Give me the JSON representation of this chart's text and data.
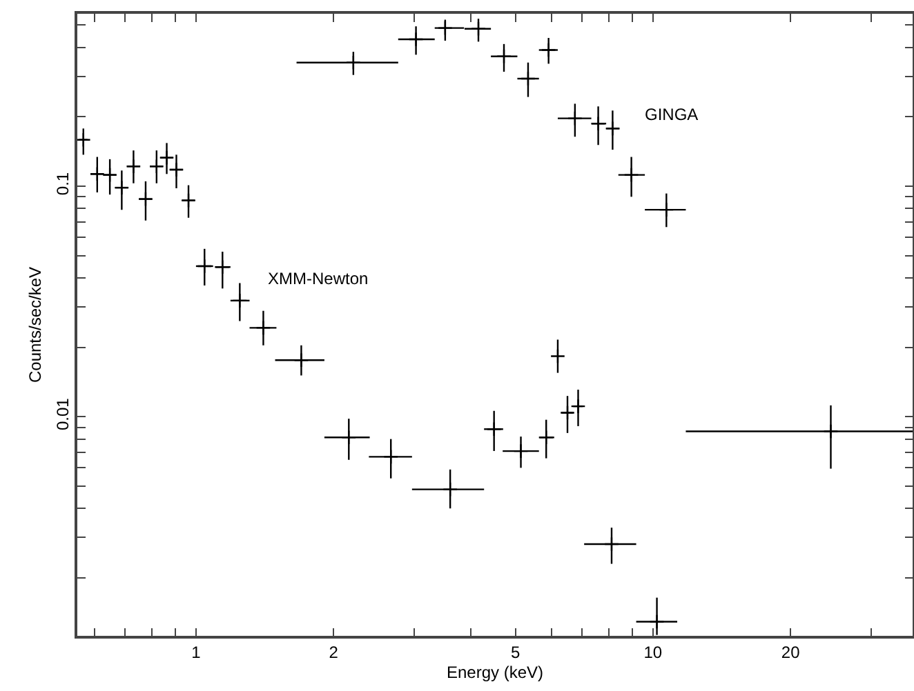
{
  "chart_data": {
    "type": "scatter",
    "xlabel": "Energy (keV)",
    "ylabel": "Counts/sec/keV",
    "log": "xy",
    "marker": "cross",
    "grid": false,
    "xlim": [
      0.55,
      37
    ],
    "ylim": [
      0.00112,
      0.56
    ],
    "xticks": [
      {
        "value": 0.6,
        "label": null
      },
      {
        "value": 0.7,
        "label": null
      },
      {
        "value": 0.8,
        "label": null
      },
      {
        "value": 0.9,
        "label": null
      },
      1,
      2,
      {
        "value": 3,
        "label": null
      },
      {
        "value": 4,
        "label": null
      },
      5,
      {
        "value": 6,
        "label": null
      },
      {
        "value": 7,
        "label": null
      },
      {
        "value": 8,
        "label": null
      },
      {
        "value": 9,
        "label": null
      },
      10,
      20,
      {
        "value": 30,
        "label": null
      }
    ],
    "yticks": [
      {
        "value": 0.002,
        "label": null
      },
      {
        "value": 0.003,
        "label": null
      },
      {
        "value": 0.004,
        "label": null
      },
      {
        "value": 0.005,
        "label": null
      },
      {
        "value": 0.006,
        "label": null
      },
      {
        "value": 0.007,
        "label": null
      },
      {
        "value": 0.008,
        "label": null
      },
      {
        "value": 0.009,
        "label": null
      },
      0.01,
      {
        "value": 0.02,
        "label": null
      },
      {
        "value": 0.03,
        "label": null
      },
      {
        "value": 0.04,
        "label": null
      },
      {
        "value": 0.05,
        "label": null
      },
      {
        "value": 0.06,
        "label": null
      },
      {
        "value": 0.07,
        "label": null
      },
      {
        "value": 0.08,
        "label": null
      },
      {
        "value": 0.09,
        "label": null
      },
      0.1,
      {
        "value": 0.2,
        "label": null
      },
      {
        "value": 0.3,
        "label": null
      },
      {
        "value": 0.4,
        "label": null
      },
      {
        "value": 0.5,
        "label": null
      }
    ],
    "annotations": [
      "XMM-Newton",
      "GINGA"
    ],
    "series": [
      {
        "color": "#000000",
        "x": [
          0.567,
          0.608,
          0.648,
          0.688,
          0.73,
          0.776,
          0.82,
          0.863,
          0.906,
          0.963,
          1.044,
          1.143,
          1.247,
          1.404,
          1.7,
          2.16,
          2.67,
          3.6,
          4.49,
          5.14,
          5.84,
          6.19,
          6.5,
          6.86,
          8.12,
          10.2,
          24.5
        ],
        "values": [
          0.159,
          0.113,
          0.112,
          0.0986,
          0.122,
          0.088,
          0.122,
          0.133,
          0.118,
          0.0868,
          0.045,
          0.0446,
          0.0319,
          0.0243,
          0.0176,
          0.00813,
          0.0067,
          0.00484,
          0.00883,
          0.00709,
          0.00813,
          0.0183,
          0.0104,
          0.0111,
          0.0028,
          0.00129,
          0.00864
        ],
        "errors": [
          [
            0.137,
            0.178
          ],
          [
            0.094,
            0.134
          ],
          [
            0.092,
            0.131
          ],
          [
            0.079,
            0.117
          ],
          [
            0.103,
            0.143
          ],
          [
            0.071,
            0.105
          ],
          [
            0.103,
            0.143
          ],
          [
            0.113,
            0.154
          ],
          [
            0.098,
            0.137
          ],
          [
            0.073,
            0.101
          ],
          [
            0.0371,
            0.0535
          ],
          [
            0.036,
            0.052
          ],
          [
            0.026,
            0.038
          ],
          [
            0.0204,
            0.0288
          ],
          [
            0.0151,
            0.0204
          ],
          [
            0.0065,
            0.0098
          ],
          [
            0.0054,
            0.008
          ],
          [
            0.004,
            0.0059
          ],
          [
            0.0071,
            0.0106
          ],
          [
            0.006,
            0.0082
          ],
          [
            0.0066,
            0.0097
          ],
          [
            0.0155,
            0.0216
          ],
          [
            0.0085,
            0.0123
          ],
          [
            0.0091,
            0.0131
          ],
          [
            0.0023,
            0.0033
          ],
          [
            0.00113,
            0.00164
          ],
          [
            0.00595,
            0.0112
          ]
        ],
        "xerrors": [
          0.012,
          0.02,
          0.021,
          0.023,
          0.024,
          0.026,
          0.027,
          0.028,
          0.03,
          0.032,
          [
            1.0,
            1.09
          ],
          [
            1.1,
            1.19
          ],
          [
            1.19,
            1.31
          ],
          [
            1.31,
            1.5
          ],
          [
            1.49,
            1.91
          ],
          [
            1.91,
            2.4
          ],
          [
            2.39,
            2.97
          ],
          [
            2.97,
            4.27
          ],
          [
            4.27,
            4.7
          ],
          [
            4.69,
            5.63
          ],
          [
            5.63,
            6.08
          ],
          null,
          [
            6.31,
            6.69
          ],
          [
            6.69,
            7.02
          ],
          [
            7.07,
            9.19
          ],
          [
            9.19,
            11.3
          ],
          [
            11.8,
            37
          ]
        ]
      },
      {
        "color": "#000000",
        "x": [
          2.21,
          3.03,
          3.51,
          4.15,
          4.72,
          5.33,
          5.91,
          6.75,
          7.59,
          8.16,
          8.97,
          10.7
        ],
        "values": [
          0.344,
          0.434,
          0.486,
          0.482,
          0.366,
          0.293,
          0.39,
          0.197,
          0.187,
          0.178,
          0.112,
          0.0791
        ],
        "errors": [
          [
            0.304,
            0.383
          ],
          [
            0.372,
            0.494
          ],
          [
            0.428,
            0.528
          ],
          [
            0.424,
            0.533
          ],
          [
            0.314,
            0.414
          ],
          [
            0.244,
            0.344
          ],
          [
            0.34,
            0.44
          ],
          [
            0.164,
            0.228
          ],
          [
            0.151,
            0.222
          ],
          [
            0.144,
            0.213
          ],
          [
            0.09,
            0.134
          ],
          [
            0.0665,
            0.093
          ]
        ],
        "xerrors": [
          [
            1.66,
            2.77
          ],
          [
            2.77,
            3.33
          ],
          [
            3.33,
            3.86
          ],
          [
            3.87,
            4.42
          ],
          [
            4.42,
            5.05
          ],
          [
            5.05,
            5.63
          ],
          [
            5.63,
            6.19
          ],
          [
            6.19,
            7.33
          ],
          [
            7.33,
            7.9
          ],
          [
            7.9,
            8.45
          ],
          [
            8.4,
            9.6
          ],
          [
            9.6,
            11.8
          ]
        ]
      }
    ]
  }
}
